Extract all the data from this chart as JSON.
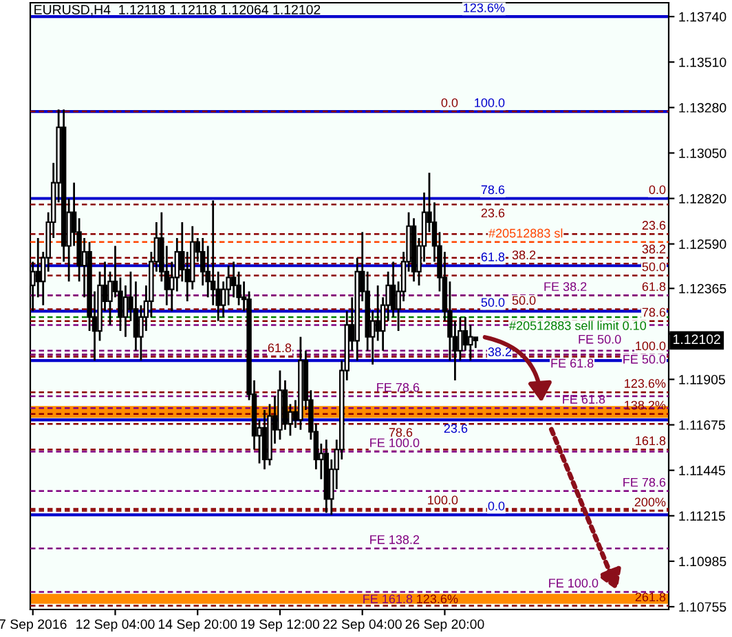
{
  "chart_data": {
    "type": "candlestick",
    "title": "EURUSD,H4  1.12118 1.12118 1.12064 1.12102",
    "categories": [
      "7 Sep 2016",
      null,
      null,
      null,
      null,
      null,
      null,
      null,
      null,
      null,
      null,
      null,
      null,
      null,
      null,
      null,
      "12 Sep 04:00",
      null,
      null,
      null,
      null,
      null,
      null,
      null,
      null,
      null,
      null,
      null,
      null,
      null,
      null,
      null,
      "14 Sep 20:00",
      null,
      null,
      null,
      null,
      null,
      null,
      null,
      null,
      null,
      null,
      null,
      null,
      null,
      null,
      null,
      "19 Sep 12:00",
      null,
      null,
      null,
      null,
      null,
      null,
      null,
      null,
      null,
      null,
      null,
      null,
      null,
      null,
      null,
      "22 Sep 04:00",
      null,
      null,
      null,
      null,
      null,
      null,
      null,
      null,
      null,
      null,
      null,
      null,
      null,
      null,
      null,
      "26 Sep 20:00",
      null,
      null,
      null,
      null,
      null,
      null,
      null,
      null,
      null,
      null,
      null,
      null,
      null,
      null,
      null,
      null,
      null,
      null,
      null,
      null,
      null,
      null,
      null,
      null,
      null,
      null,
      null,
      null,
      null,
      null,
      null,
      null,
      null,
      null,
      null,
      null,
      null,
      null,
      null,
      null,
      null,
      null,
      null
    ],
    "ohlc": [
      [
        1.1238,
        1.125,
        1.1225,
        1.1245
      ],
      [
        1.1245,
        1.1262,
        1.1232,
        1.124
      ],
      [
        1.124,
        1.1255,
        1.1228,
        1.1252
      ],
      [
        1.1252,
        1.1275,
        1.1245,
        1.127
      ],
      [
        1.127,
        1.13,
        1.1262,
        1.129
      ],
      [
        1.129,
        1.1327,
        1.128,
        1.1318
      ],
      [
        1.1318,
        1.1327,
        1.125,
        1.1258
      ],
      [
        1.1258,
        1.1282,
        1.124,
        1.1275
      ],
      [
        1.1275,
        1.129,
        1.1258,
        1.1265
      ],
      [
        1.1265,
        1.1272,
        1.124,
        1.1248
      ],
      [
        1.1248,
        1.1262,
        1.1232,
        1.1255
      ],
      [
        1.1255,
        1.126,
        1.1215,
        1.1222
      ],
      [
        1.1222,
        1.1235,
        1.12,
        1.1215
      ],
      [
        1.1215,
        1.1245,
        1.121,
        1.1238
      ],
      [
        1.1238,
        1.125,
        1.1225,
        1.123
      ],
      [
        1.123,
        1.1245,
        1.1218,
        1.124
      ],
      [
        1.124,
        1.1258,
        1.1232,
        1.1235
      ],
      [
        1.1235,
        1.1242,
        1.1215,
        1.1222
      ],
      [
        1.1222,
        1.1238,
        1.1212,
        1.1232
      ],
      [
        1.1232,
        1.1245,
        1.122,
        1.1226
      ],
      [
        1.1226,
        1.124,
        1.1205,
        1.1212
      ],
      [
        1.1212,
        1.1228,
        1.12,
        1.1222
      ],
      [
        1.1222,
        1.1238,
        1.1215,
        1.123
      ],
      [
        1.123,
        1.1255,
        1.1222,
        1.125
      ],
      [
        1.125,
        1.127,
        1.1245,
        1.1262
      ],
      [
        1.1262,
        1.1275,
        1.124,
        1.1245
      ],
      [
        1.1245,
        1.1258,
        1.1228,
        1.1236
      ],
      [
        1.1236,
        1.125,
        1.1225,
        1.1242
      ],
      [
        1.1242,
        1.1262,
        1.1235,
        1.1255
      ],
      [
        1.1255,
        1.127,
        1.124,
        1.1246
      ],
      [
        1.1246,
        1.1255,
        1.123,
        1.124
      ],
      [
        1.124,
        1.1268,
        1.1236,
        1.126
      ],
      [
        1.126,
        1.1262,
        1.125,
        1.1255
      ],
      [
        1.1255,
        1.1262,
        1.1238,
        1.1245
      ],
      [
        1.1245,
        1.1258,
        1.1232,
        1.124
      ],
      [
        1.124,
        1.1281,
        1.1228,
        1.1236
      ],
      [
        1.1236,
        1.1245,
        1.122,
        1.1228
      ],
      [
        1.1228,
        1.124,
        1.1222,
        1.1236
      ],
      [
        1.1236,
        1.1248,
        1.1228,
        1.1242
      ],
      [
        1.1242,
        1.125,
        1.1232,
        1.1238
      ],
      [
        1.1238,
        1.1245,
        1.1228,
        1.1232
      ],
      [
        1.1232,
        1.124,
        1.1225,
        1.1231
      ],
      [
        1.1231,
        1.1235,
        1.118,
        1.1183
      ],
      [
        1.1183,
        1.119,
        1.1155,
        1.1162
      ],
      [
        1.1162,
        1.117,
        1.1148,
        1.1166
      ],
      [
        1.1166,
        1.1175,
        1.1145,
        1.115
      ],
      [
        1.115,
        1.1178,
        1.1147,
        1.1172
      ],
      [
        1.1172,
        1.1182,
        1.1158,
        1.1165
      ],
      [
        1.1165,
        1.1195,
        1.116,
        1.1185
      ],
      [
        1.1185,
        1.119,
        1.1165,
        1.1168
      ],
      [
        1.1168,
        1.1178,
        1.1162,
        1.1174
      ],
      [
        1.1174,
        1.118,
        1.1166,
        1.117
      ],
      [
        1.117,
        1.1212,
        1.1165,
        1.12
      ],
      [
        1.12,
        1.1205,
        1.1175,
        1.118
      ],
      [
        1.118,
        1.1185,
        1.116,
        1.1164
      ],
      [
        1.1164,
        1.1168,
        1.1145,
        1.115
      ],
      [
        1.115,
        1.1158,
        1.114,
        1.1153
      ],
      [
        1.1153,
        1.116,
        1.1123,
        1.113
      ],
      [
        1.113,
        1.115,
        1.1122,
        1.1145
      ],
      [
        1.1145,
        1.116,
        1.1135,
        1.1155
      ],
      [
        1.1155,
        1.12,
        1.115,
        1.1195
      ],
      [
        1.1195,
        1.1225,
        1.119,
        1.1218
      ],
      [
        1.1218,
        1.1232,
        1.1205,
        1.121
      ],
      [
        1.121,
        1.1252,
        1.12,
        1.1245
      ],
      [
        1.1245,
        1.1265,
        1.123,
        1.1235
      ],
      [
        1.1235,
        1.1245,
        1.1205,
        1.1212
      ],
      [
        1.1212,
        1.1225,
        1.1198,
        1.122
      ],
      [
        1.122,
        1.1238,
        1.121,
        1.1215
      ],
      [
        1.1215,
        1.1232,
        1.1205,
        1.1228
      ],
      [
        1.1228,
        1.1245,
        1.122,
        1.1238
      ],
      [
        1.1238,
        1.125,
        1.1222,
        1.1226
      ],
      [
        1.1226,
        1.124,
        1.1215,
        1.1235
      ],
      [
        1.1235,
        1.1255,
        1.123,
        1.125
      ],
      [
        1.125,
        1.1275,
        1.1245,
        1.1268
      ],
      [
        1.1268,
        1.1272,
        1.124,
        1.1245
      ],
      [
        1.1245,
        1.1262,
        1.1238,
        1.1258
      ],
      [
        1.1258,
        1.1285,
        1.125,
        1.1275
      ],
      [
        1.1275,
        1.1295,
        1.1265,
        1.127
      ],
      [
        1.127,
        1.128,
        1.125,
        1.1258
      ],
      [
        1.1258,
        1.1265,
        1.1235,
        1.1242
      ],
      [
        1.1242,
        1.1255,
        1.122,
        1.1225
      ],
      [
        1.1225,
        1.124,
        1.12,
        1.1212
      ],
      [
        1.1212,
        1.122,
        1.119,
        1.1205
      ],
      [
        1.1205,
        1.1222,
        1.12,
        1.1215
      ],
      [
        1.1215,
        1.1222,
        1.1205,
        1.1208
      ],
      [
        1.1208,
        1.1218,
        1.12,
        1.1212
      ],
      [
        1.12118,
        1.12118,
        1.12064,
        1.12102
      ],
      null,
      null,
      null,
      null,
      null,
      null,
      null,
      null,
      null,
      null,
      null,
      null,
      null,
      null,
      null,
      null,
      null,
      null,
      null,
      null,
      null,
      null,
      null,
      null,
      null,
      null,
      null,
      null,
      null,
      null,
      null,
      null,
      null,
      null,
      null,
      null,
      null
    ],
    "ylim": [
      1.10741,
      1.1381
    ],
    "yticks": [
      {
        "value": 1.1374,
        "label": "1.13740"
      },
      {
        "value": 1.1351,
        "label": "1.13510"
      },
      {
        "value": 1.1328,
        "label": "1.13280"
      },
      {
        "value": 1.1305,
        "label": "1.13050"
      },
      {
        "value": 1.1282,
        "label": "1.12820"
      },
      {
        "value": 1.1259,
        "label": "1.12590"
      },
      {
        "value": 1.12365,
        "label": "1.12365"
      },
      {
        "value": 1.12135,
        "label": null
      },
      {
        "value": 1.11905,
        "label": "1.11905"
      },
      {
        "value": 1.11675,
        "label": "1.11675"
      },
      {
        "value": 1.11445,
        "label": "1.11445"
      },
      {
        "value": 1.11215,
        "label": "1.11215"
      },
      {
        "value": 1.10985,
        "label": "1.10985"
      },
      {
        "value": 1.10755,
        "label": "1.10755"
      }
    ],
    "bands": [
      {
        "axis": "y",
        "from": 1.1171,
        "to": 1.1177,
        "color": "#ff8c00"
      },
      {
        "axis": "y",
        "from": 1.1077,
        "to": 1.1082,
        "color": "#ff8c00"
      }
    ],
    "ref_lines": [
      {
        "axis": "y",
        "value": 1.1374,
        "color": "#0000cd",
        "line_style": "solid"
      },
      {
        "axis": "y",
        "value": 1.1326,
        "color": "#0000cd",
        "line_style": "solid"
      },
      {
        "axis": "y",
        "value": 1.1282,
        "color": "#0000cd",
        "line_style": "solid"
      },
      {
        "axis": "y",
        "value": 1.1248,
        "color": "#0000cd",
        "line_style": "solid"
      },
      {
        "axis": "y",
        "value": 1.1225,
        "color": "#0000cd",
        "line_style": "solid"
      },
      {
        "axis": "y",
        "value": 1.12,
        "color": "#0000cd",
        "line_style": "solid"
      },
      {
        "axis": "y",
        "value": 1.117,
        "color": "#0000cd",
        "line_style": "solid"
      },
      {
        "axis": "y",
        "value": 1.1122,
        "color": "#0000cd",
        "line_style": "solid"
      },
      {
        "axis": "y",
        "value": 1.1326,
        "color": "#8b0000",
        "line_style": "dashed"
      },
      {
        "axis": "y",
        "value": 1.1279,
        "color": "#8b0000",
        "line_style": "dashed"
      },
      {
        "axis": "y",
        "value": 1.1249,
        "color": "#8b0000",
        "line_style": "dashed"
      },
      {
        "axis": "y",
        "value": 1.1226,
        "color": "#8b0000",
        "line_style": "dashed"
      },
      {
        "axis": "y",
        "value": 1.1202,
        "color": "#8b0000",
        "line_style": "dashed"
      },
      {
        "axis": "y",
        "value": 1.1168,
        "color": "#8b0000",
        "line_style": "dashed"
      },
      {
        "axis": "y",
        "value": 1.1125,
        "color": "#8b0000",
        "line_style": "dashed"
      },
      {
        "axis": "y",
        "value": 1.1264,
        "color": "#8b0000",
        "line_style": "dashed"
      },
      {
        "axis": "y",
        "value": 1.1252,
        "color": "#8b0000",
        "line_style": "dashed"
      },
      {
        "axis": "y",
        "value": 1.1243,
        "color": "#8b0000",
        "line_style": "dashed"
      },
      {
        "axis": "y",
        "value": 1.1233,
        "color": "#8b0000",
        "line_style": "dashed"
      },
      {
        "axis": "y",
        "value": 1.122,
        "color": "#8b0000",
        "line_style": "dashed"
      },
      {
        "axis": "y",
        "value": 1.1203,
        "color": "#8b0000",
        "line_style": "dashed"
      },
      {
        "axis": "y",
        "value": 1.1184,
        "color": "#8b0000",
        "line_style": "dashed"
      },
      {
        "axis": "y",
        "value": 1.1173,
        "color": "#8b0000",
        "line_style": "dashed"
      },
      {
        "axis": "y",
        "value": 1.1155,
        "color": "#8b0000",
        "line_style": "dashed"
      },
      {
        "axis": "y",
        "value": 1.1124,
        "color": "#8b0000",
        "line_style": "dashed"
      },
      {
        "axis": "y",
        "value": 1.1076,
        "color": "#8b0000",
        "line_style": "dashed"
      },
      {
        "axis": "y",
        "value": 1.1233,
        "color": "#800080",
        "line_style": "dashed"
      },
      {
        "axis": "y",
        "value": 1.1218,
        "color": "#800080",
        "line_style": "dashed"
      },
      {
        "axis": "y",
        "value": 1.1203,
        "color": "#800080",
        "line_style": "dashed"
      },
      {
        "axis": "y",
        "value": 1.1182,
        "color": "#800080",
        "line_style": "dashed"
      },
      {
        "axis": "y",
        "value": 1.1154,
        "color": "#800080",
        "line_style": "dashed"
      },
      {
        "axis": "y",
        "value": 1.1105,
        "color": "#800080",
        "line_style": "dashed"
      },
      {
        "axis": "y",
        "value": 1.1205,
        "color": "#800080",
        "line_style": "dashed"
      },
      {
        "axis": "y",
        "value": 1.1176,
        "color": "#800080",
        "line_style": "dashed"
      },
      {
        "axis": "y",
        "value": 1.1134,
        "color": "#800080",
        "line_style": "dashed"
      },
      {
        "axis": "y",
        "value": 1.1083,
        "color": "#800080",
        "line_style": "dashed"
      },
      {
        "axis": "y",
        "value": 1.126,
        "color": "#ff4500",
        "line_style": "dashed"
      },
      {
        "axis": "y",
        "value": 1.1222,
        "color": "#008000",
        "line_style": "dashed"
      }
    ],
    "annotations": [
      {
        "text": "123.6%",
        "y": 1.1374
      },
      {
        "text": "100.0",
        "y": 1.1326
      },
      {
        "text": "78.6",
        "y": 1.1282
      },
      {
        "text": "61.8",
        "y": 1.1248
      },
      {
        "text": "50.0",
        "y": 1.1225
      },
      {
        "text": "38.2",
        "y": 1.12
      },
      {
        "text": "23.6",
        "y": 1.117
      },
      {
        "text": "0.0",
        "y": 1.1122
      },
      {
        "text": "0.0",
        "y": 1.1326
      },
      {
        "text": "23.6",
        "y": 1.1279
      },
      {
        "text": "38.2",
        "y": 1.1249
      },
      {
        "text": "50.0",
        "y": 1.1226
      },
      {
        "text": "61.8",
        "y": 1.1202
      },
      {
        "text": "78.6",
        "y": 1.1168
      },
      {
        "text": "100.0",
        "y": 1.1125
      },
      {
        "text": "123.6%",
        "y": 1.1075
      },
      {
        "text": "0.0",
        "y": 1.1282
      },
      {
        "text": "23.6",
        "y": 1.1264
      },
      {
        "text": "38.2",
        "y": 1.1252
      },
      {
        "text": "50.0",
        "y": 1.1243
      },
      {
        "text": "61.8",
        "y": 1.1233
      },
      {
        "text": "78.6",
        "y": 1.122
      },
      {
        "text": "100.0",
        "y": 1.1203
      },
      {
        "text": "123.6%",
        "y": 1.1184
      },
      {
        "text": "138.2%",
        "y": 1.1173
      },
      {
        "text": "161.8",
        "y": 1.1155
      },
      {
        "text": "200%",
        "y": 1.1124
      },
      {
        "text": "261.8",
        "y": 1.1076
      },
      {
        "text": "FE 38.2",
        "y": 1.1233
      },
      {
        "text": "FE 50.0",
        "y": 1.1218
      },
      {
        "text": "FE 61.8",
        "y": 1.1203
      },
      {
        "text": "FE 78.6",
        "y": 1.1182
      },
      {
        "text": "FE 100.0",
        "y": 1.1154
      },
      {
        "text": "FE 138.2",
        "y": 1.1105
      },
      {
        "text": "FE 161.8",
        "y": 1.1075
      },
      {
        "text": "FE 50.0",
        "y": 1.1205
      },
      {
        "text": "FE 61.8",
        "y": 1.1176
      },
      {
        "text": "FE 78.6",
        "y": 1.1134
      },
      {
        "text": "FE 100.0",
        "y": 1.1083
      },
      {
        "text": "#20512883 sl",
        "y": 1.126
      },
      {
        "text": "#20512883 sell limit 0.10",
        "y": 1.1222
      },
      {
        "text": "1.12102",
        "y": 1.12102
      }
    ]
  }
}
